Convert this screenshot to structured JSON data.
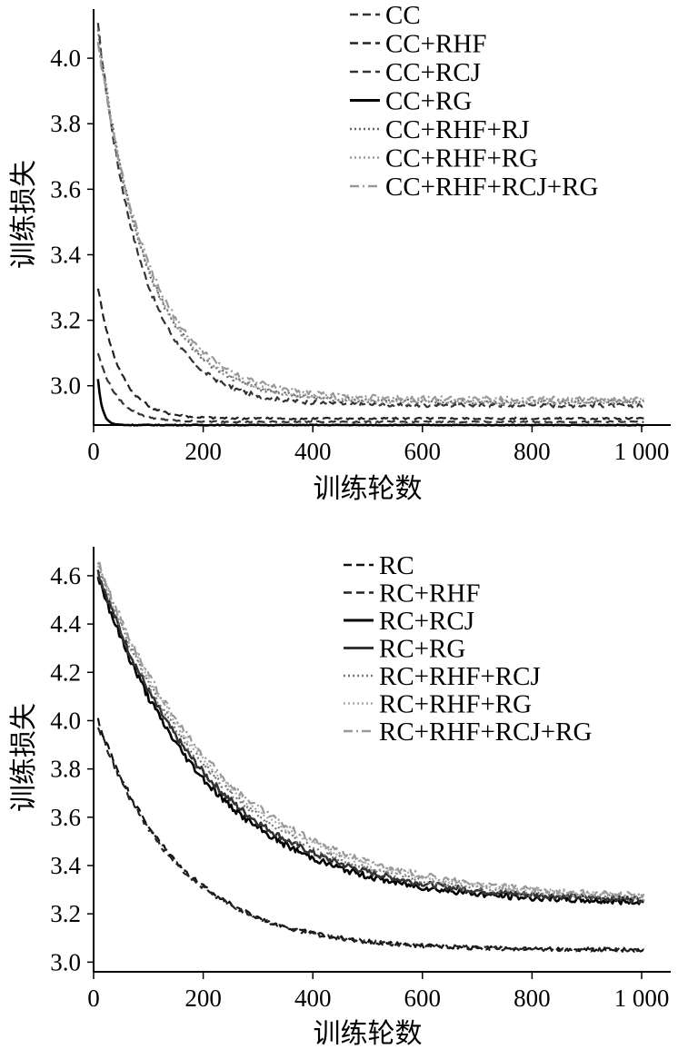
{
  "chart_data": [
    {
      "type": "line",
      "xlabel": "训练轮数",
      "ylabel": "训练损失",
      "xlim": [
        0,
        1000
      ],
      "ylim": [
        2.88,
        4.15
      ],
      "xticks": [
        0,
        200,
        400,
        600,
        800,
        1000
      ],
      "xtick_labels": [
        "0",
        "200",
        "400",
        "600",
        "800",
        "1 000"
      ],
      "yticks": [
        3.0,
        3.2,
        3.4,
        3.6,
        3.8,
        4.0
      ],
      "ytick_labels": [
        "3.0",
        "3.2",
        "3.4",
        "3.6",
        "3.8",
        "4.0"
      ],
      "legend_position": "top-right",
      "series": [
        {
          "name": "CC",
          "color": "#333333",
          "dash": "dash",
          "start": 4.1,
          "end": 2.94,
          "tau": 80,
          "noise": 0.006
        },
        {
          "name": "CC+RHF",
          "color": "#222222",
          "dash": "dash",
          "start": 3.3,
          "end": 2.9,
          "tau": 40,
          "noise": 0.003
        },
        {
          "name": "CC+RCJ",
          "color": "#333333",
          "dash": "dash",
          "start": 3.1,
          "end": 2.89,
          "tau": 35,
          "noise": 0.002
        },
        {
          "name": "CC+RG",
          "color": "#000000",
          "dash": "solid",
          "start": 3.02,
          "end": 2.88,
          "tau": 8,
          "noise": 0.001
        },
        {
          "name": "CC+RHF+RJ",
          "color": "#666666",
          "dash": "dot",
          "start": 4.08,
          "end": 2.95,
          "tau": 90,
          "noise": 0.007
        },
        {
          "name": "CC+RHF+RG",
          "color": "#999999",
          "dash": "dot",
          "start": 4.06,
          "end": 2.95,
          "tau": 92,
          "noise": 0.007
        },
        {
          "name": "CC+RHF+RCJ+RG",
          "color": "#999999",
          "dash": "dashdot",
          "start": 4.05,
          "end": 2.96,
          "tau": 95,
          "noise": 0.007
        }
      ]
    },
    {
      "type": "line",
      "xlabel": "训练轮数",
      "ylabel": "训练损失",
      "xlim": [
        0,
        1000
      ],
      "ylim": [
        2.96,
        4.72
      ],
      "xticks": [
        0,
        200,
        400,
        600,
        800,
        1000
      ],
      "xtick_labels": [
        "0",
        "200",
        "400",
        "600",
        "800",
        "1 000"
      ],
      "yticks": [
        3.0,
        3.2,
        3.4,
        3.6,
        3.8,
        4.0,
        4.2,
        4.4,
        4.6
      ],
      "ytick_labels": [
        "3.0",
        "3.2",
        "3.4",
        "3.6",
        "3.8",
        "4.0",
        "4.2",
        "4.4",
        "4.6"
      ],
      "legend_position": "top-right",
      "series": [
        {
          "name": "RC",
          "color": "#111111",
          "dash": "dash",
          "start": 4.0,
          "end": 3.05,
          "tau": 150,
          "noise": 0.008
        },
        {
          "name": "RC+RHF",
          "color": "#222222",
          "dash": "dash",
          "start": 3.98,
          "end": 3.05,
          "tau": 150,
          "noise": 0.008
        },
        {
          "name": "RC+RCJ",
          "color": "#000000",
          "dash": "solid",
          "start": 4.6,
          "end": 3.24,
          "tau": 200,
          "noise": 0.012
        },
        {
          "name": "RC+RG",
          "color": "#333333",
          "dash": "solid",
          "start": 4.62,
          "end": 3.25,
          "tau": 205,
          "noise": 0.012
        },
        {
          "name": "RC+RHF+RCJ",
          "color": "#777777",
          "dash": "dot",
          "start": 4.64,
          "end": 3.25,
          "tau": 215,
          "noise": 0.012
        },
        {
          "name": "RC+RHF+RG",
          "color": "#aaaaaa",
          "dash": "dot",
          "start": 4.65,
          "end": 3.26,
          "tau": 220,
          "noise": 0.012
        },
        {
          "name": "RC+RHF+RCJ+RG",
          "color": "#999999",
          "dash": "dashdot",
          "start": 4.66,
          "end": 3.26,
          "tau": 225,
          "noise": 0.012
        }
      ]
    }
  ]
}
